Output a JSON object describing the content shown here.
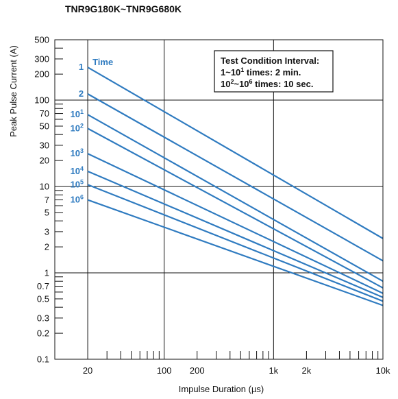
{
  "chart_data": {
    "type": "line",
    "title": "TNR9G180K~TNR9G680K",
    "xlabel": "Impulse Duration (µs)",
    "ylabel": "Peak Pulse Current (A)",
    "x_scale": "log",
    "y_scale": "log",
    "xlim": [
      10,
      10000
    ],
    "ylim": [
      0.1,
      500
    ],
    "x_ticks": [
      20,
      100,
      200,
      1000,
      2000,
      10000
    ],
    "x_tick_labels": [
      "20",
      "100",
      "200",
      "1k",
      "2k",
      "10k"
    ],
    "y_ticks": [
      500,
      300,
      200,
      100,
      70,
      50,
      30,
      20,
      10,
      7,
      5,
      3,
      2,
      1,
      0.7,
      0.5,
      0.3,
      0.2,
      0.1
    ],
    "y_tick_labels": [
      "500",
      "300",
      "200",
      "100",
      "70",
      "50",
      "30",
      "20",
      "10",
      "7",
      "5",
      "3",
      "2",
      "1",
      "0.7",
      "0.5",
      "0.3",
      "0.2",
      "0.1"
    ],
    "grid": true,
    "line_color": "#2f7bc0",
    "legend_title": "Time",
    "series": [
      {
        "label_base": "1",
        "label_exp": "",
        "x": [
          20,
          10000
        ],
        "y": [
          240,
          2.5
        ]
      },
      {
        "label_base": "2",
        "label_exp": "",
        "x": [
          20,
          10000
        ],
        "y": [
          118,
          1.38
        ]
      },
      {
        "label_base": "10",
        "label_exp": "1",
        "x": [
          20,
          10000
        ],
        "y": [
          68,
          0.8
        ]
      },
      {
        "label_base": "10",
        "label_exp": "2",
        "x": [
          20,
          10000
        ],
        "y": [
          47,
          0.67
        ]
      },
      {
        "label_base": "10",
        "label_exp": "3",
        "x": [
          20,
          10000
        ],
        "y": [
          24,
          0.58
        ]
      },
      {
        "label_base": "10",
        "label_exp": "4",
        "x": [
          20,
          10000
        ],
        "y": [
          15,
          0.52
        ]
      },
      {
        "label_base": "10",
        "label_exp": "5",
        "x": [
          20,
          10000
        ],
        "y": [
          10.5,
          0.47
        ]
      },
      {
        "label_base": "10",
        "label_exp": "6",
        "x": [
          20,
          10000
        ],
        "y": [
          7,
          0.42
        ]
      }
    ],
    "annotation": {
      "line1": "Test Condition Interval:",
      "line2_base": "1~10",
      "line2_exp": "1",
      "line2_rest": " times: 2 min.",
      "line3_a": "10",
      "line3_exp_a": "2",
      "line3_b": "~10",
      "line3_exp_b": "6",
      "line3_rest": " times: 10 sec."
    }
  }
}
